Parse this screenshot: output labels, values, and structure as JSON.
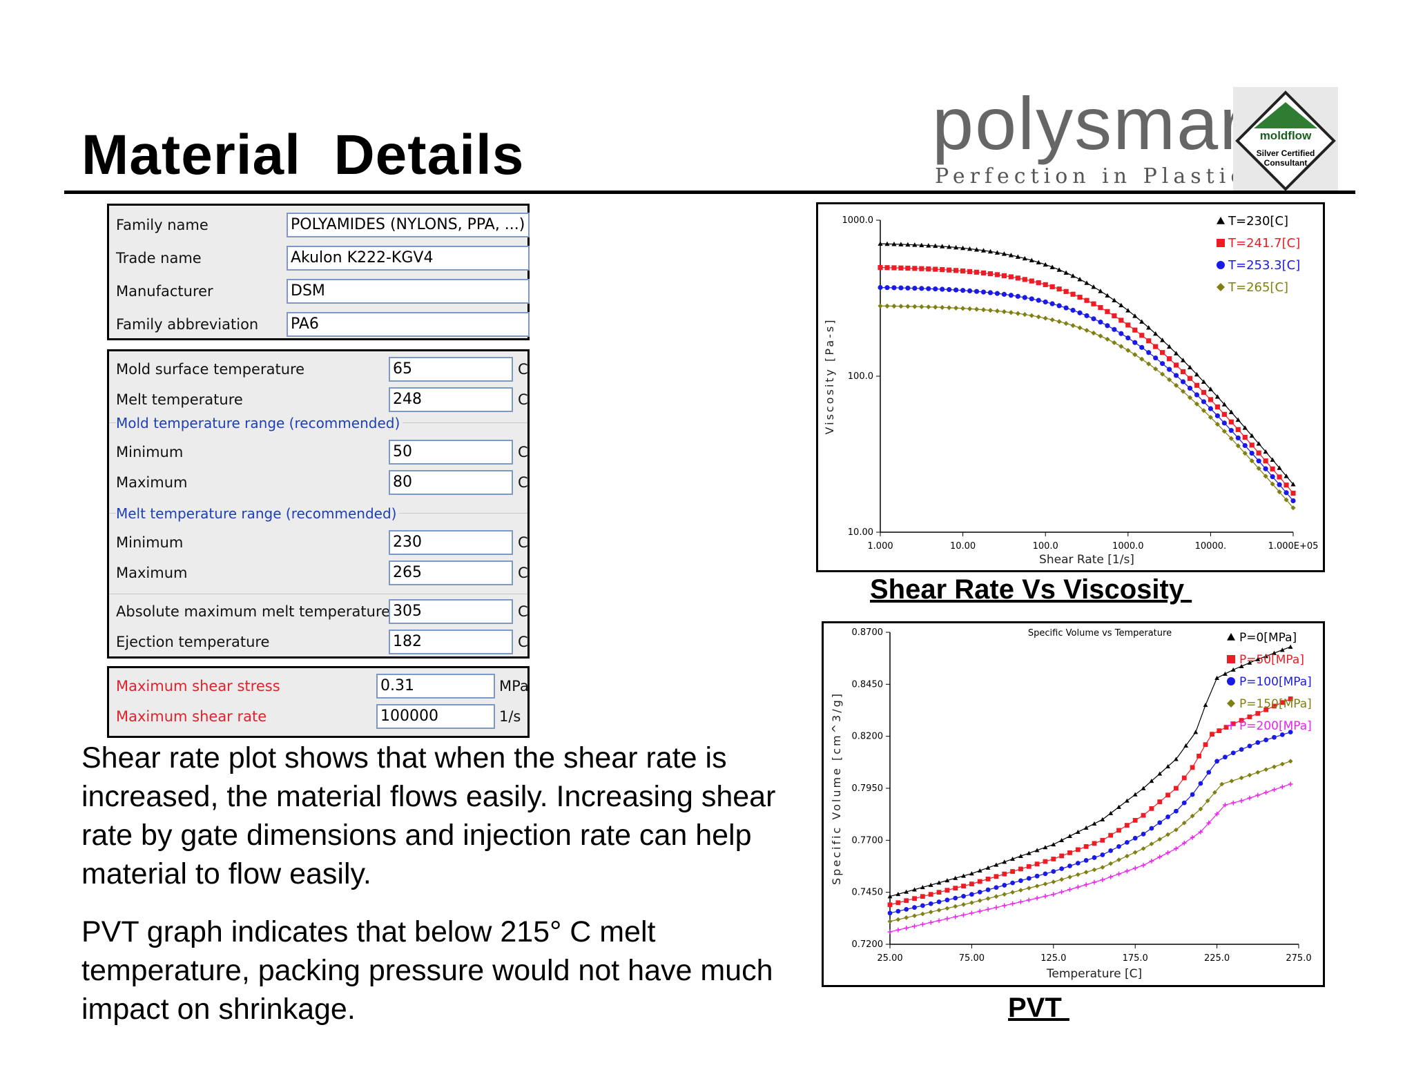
{
  "header": {
    "title": "Material  Details"
  },
  "logo": {
    "name": "polysmart",
    "tagline": "Perfection in Plastics",
    "badge_top": "moldflow",
    "badge_line1": "Silver Certified",
    "badge_line2": "Consultant"
  },
  "panel1": {
    "rows": [
      {
        "label": "Family name",
        "value": "POLYAMIDES (NYLONS, PPA, ...)"
      },
      {
        "label": "Trade name",
        "value": "Akulon K222-KGV4"
      },
      {
        "label": "Manufacturer",
        "value": "DSM"
      },
      {
        "label": "Family abbreviation",
        "value": "PA6"
      }
    ]
  },
  "panel2": {
    "mold_surface": {
      "label": "Mold surface temperature",
      "value": "65",
      "unit": "C"
    },
    "melt": {
      "label": "Melt temperature",
      "value": "248",
      "unit": "C"
    },
    "mold_range_title": "Mold temperature range (recommended)",
    "mold_min": {
      "label": "Minimum",
      "value": "50",
      "unit": "C"
    },
    "mold_max": {
      "label": "Maximum",
      "value": "80",
      "unit": "C"
    },
    "melt_range_title": "Melt temperature range (recommended)",
    "melt_min": {
      "label": "Minimum",
      "value": "230",
      "unit": "C"
    },
    "melt_max": {
      "label": "Maximum",
      "value": "265",
      "unit": "C"
    },
    "abs_max": {
      "label": "Absolute maximum melt temperature",
      "value": "305",
      "unit": "C"
    },
    "ejection": {
      "label": "Ejection temperature",
      "value": "182",
      "unit": "C"
    }
  },
  "panel3": {
    "stress": {
      "label": "Maximum shear stress",
      "value": "0.31",
      "unit": "MPa"
    },
    "rate": {
      "label": "Maximum shear rate",
      "value": "100000",
      "unit": "1/s"
    }
  },
  "text": {
    "para1": "Shear rate plot shows that when the shear rate is increased, the material flows easily. Increasing shear rate by gate dimensions and injection rate can help material to flow easily.",
    "para2": "PVT graph indicates that below 215° C melt temperature, packing pressure would not have much impact on shrinkage."
  },
  "captions": {
    "viscosity": "Shear Rate Vs Viscosity ",
    "pvt": "PVT "
  },
  "chart_data": [
    {
      "type": "line",
      "title": "",
      "xlabel": "Shear Rate [1/s]",
      "ylabel": "Viscosity [Pa-s]",
      "xscale": "log",
      "yscale": "log",
      "xlim": [
        1,
        100000
      ],
      "ylim": [
        10,
        1000
      ],
      "xticks": [
        "1.000",
        "10.00",
        "100.0",
        "1000.0",
        "10000.",
        "1.000E+05"
      ],
      "yticks": [
        "10.00",
        "100.0",
        "1000.0"
      ],
      "legend_position": "top-right",
      "series": [
        {
          "name": "T=230[C]",
          "color": "#000000",
          "marker": "triangle",
          "eta0": 720,
          "tau": 0.31
        },
        {
          "name": "T=241.7[C]",
          "color": "#ee1c24",
          "marker": "square",
          "eta0": 505,
          "tau": 0.31
        },
        {
          "name": "T=253.3[C]",
          "color": "#1a1ae6",
          "marker": "circle",
          "eta0": 375,
          "tau": 0.31
        },
        {
          "name": "T=265[C]",
          "color": "#7f7f12",
          "marker": "diamond",
          "eta0": 285,
          "tau": 0.31
        }
      ],
      "n": 0.35
    },
    {
      "type": "line",
      "title": "Specific Volume vs Temperature",
      "xlabel": "Temperature [C]",
      "ylabel": "Specific Volume [cm^3/g]",
      "xlim": [
        25,
        275
      ],
      "ylim": [
        0.72,
        0.87
      ],
      "xticks": [
        "25.00",
        "75.00",
        "125.0",
        "175.0",
        "225.0",
        "275.0"
      ],
      "yticks": [
        "0.7200",
        "0.7450",
        "0.7700",
        "0.7950",
        "0.8200",
        "0.8450",
        "0.8700"
      ],
      "legend_position": "top-right",
      "series": [
        {
          "name": "P=0[MPa]",
          "color": "#000000",
          "marker": "triangle",
          "points": [
            [
              25,
              0.743
            ],
            [
              75,
              0.754
            ],
            [
              125,
              0.768
            ],
            [
              155,
              0.78
            ],
            [
              180,
              0.795
            ],
            [
              200,
              0.809
            ],
            [
              212,
              0.822
            ],
            [
              218,
              0.835
            ],
            [
              225,
              0.848
            ],
            [
              235,
              0.852
            ],
            [
              250,
              0.857
            ],
            [
              270,
              0.863
            ]
          ]
        },
        {
          "name": "P=50[MPa]",
          "color": "#ee1c24",
          "marker": "square",
          "points": [
            [
              25,
              0.739
            ],
            [
              75,
              0.749
            ],
            [
              125,
              0.761
            ],
            [
              155,
              0.77
            ],
            [
              180,
              0.782
            ],
            [
              200,
              0.795
            ],
            [
              210,
              0.805
            ],
            [
              218,
              0.816
            ],
            [
              222,
              0.821
            ],
            [
              235,
              0.826
            ],
            [
              250,
              0.831
            ],
            [
              270,
              0.838
            ]
          ]
        },
        {
          "name": "P=100[MPa]",
          "color": "#1a1ae6",
          "marker": "circle",
          "points": [
            [
              25,
              0.735
            ],
            [
              75,
              0.744
            ],
            [
              125,
              0.755
            ],
            [
              155,
              0.763
            ],
            [
              180,
              0.773
            ],
            [
              200,
              0.784
            ],
            [
              210,
              0.792
            ],
            [
              225,
              0.808
            ],
            [
              235,
              0.812
            ],
            [
              250,
              0.817
            ],
            [
              270,
              0.822
            ]
          ]
        },
        {
          "name": "P=150[MPa]",
          "color": "#7f7f12",
          "marker": "diamond",
          "points": [
            [
              25,
              0.731
            ],
            [
              75,
              0.74
            ],
            [
              125,
              0.75
            ],
            [
              155,
              0.757
            ],
            [
              180,
              0.766
            ],
            [
              200,
              0.775
            ],
            [
              215,
              0.785
            ],
            [
              228,
              0.797
            ],
            [
              240,
              0.8
            ],
            [
              255,
              0.804
            ],
            [
              270,
              0.808
            ]
          ]
        },
        {
          "name": "P=200[MPa]",
          "color": "#ee22ee",
          "marker": "plus",
          "points": [
            [
              25,
              0.726
            ],
            [
              75,
              0.735
            ],
            [
              125,
              0.744
            ],
            [
              155,
              0.751
            ],
            [
              180,
              0.758
            ],
            [
              200,
              0.766
            ],
            [
              215,
              0.774
            ],
            [
              230,
              0.787
            ],
            [
              240,
              0.789
            ],
            [
              255,
              0.793
            ],
            [
              270,
              0.797
            ]
          ]
        }
      ]
    }
  ]
}
